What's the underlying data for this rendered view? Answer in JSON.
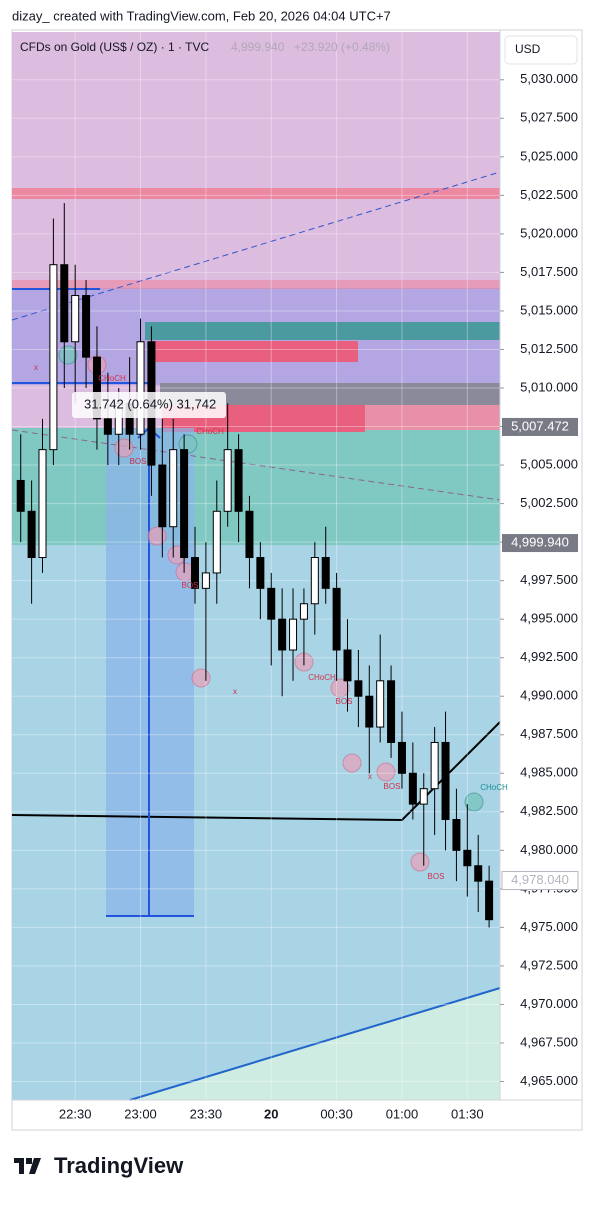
{
  "header": "dizay_ created with TradingView.com, Feb 20, 2026 04:04 UTC+7",
  "footer_logo": "TradingView",
  "chart_data": {
    "type": "candlestick",
    "symbol": "CFDs on Gold (US$ / OZ) · 1 · TVC",
    "last_text": "4,999.940",
    "change_text": "+23.920 (+0.48%)",
    "currency": "USD",
    "price_labels": [
      {
        "value": 5007.472,
        "label": "5,007.472"
      },
      {
        "value": 4999.94,
        "label": "4,999.940"
      },
      {
        "value": 4978.04,
        "label": "4,978.040"
      }
    ],
    "measure_label": "31.742 (0.64%) 31,742",
    "annotations": [
      "BOS",
      "CHoCH",
      "CHoCH",
      "BOS",
      "CHoCH",
      "BOS",
      "BOS",
      "BOS",
      "CHoCH",
      "x",
      "x",
      "x"
    ],
    "up_color": "#ffffff",
    "down_color": "#000000",
    "xlim": [
      "22:01",
      "01:45"
    ],
    "xticks": [
      {
        "value": "22:30",
        "label": "22:30"
      },
      {
        "value": "23:00",
        "label": "23:00"
      },
      {
        "value": "23:30",
        "label": "23:30"
      },
      {
        "value": "00:00",
        "label": "20"
      },
      {
        "value": "00:30",
        "label": "00:30"
      },
      {
        "value": "01:00",
        "label": "01:00"
      },
      {
        "value": "01:30",
        "label": "01:30"
      }
    ],
    "ylim": [
      4963.8,
      5033.1
    ],
    "yticks": [
      {
        "value": 4965,
        "label": "4,965.000"
      },
      {
        "value": 4967.5,
        "label": "4,967.500"
      },
      {
        "value": 4970,
        "label": "4,970.000"
      },
      {
        "value": 4972.5,
        "label": "4,972.500"
      },
      {
        "value": 4975,
        "label": "4,975.000"
      },
      {
        "value": 4977.5,
        "label": "4,977.500"
      },
      {
        "value": 4980,
        "label": "4,980.000"
      },
      {
        "value": 4982.5,
        "label": "4,982.500"
      },
      {
        "value": 4985,
        "label": "4,985.000"
      },
      {
        "value": 4987.5,
        "label": "4,987.500"
      },
      {
        "value": 4990,
        "label": "4,990.000"
      },
      {
        "value": 4992.5,
        "label": "4,992.500"
      },
      {
        "value": 4995,
        "label": "4,995.000"
      },
      {
        "value": 4997.5,
        "label": "4,997.500"
      },
      {
        "value": 5000,
        "label": "5,000.000"
      },
      {
        "value": 5002.5,
        "label": "5,002.500"
      },
      {
        "value": 5005,
        "label": "5,005.000"
      },
      {
        "value": 5007.5,
        "label": "5,007.500"
      },
      {
        "value": 5010,
        "label": "5,010.000"
      },
      {
        "value": 5012.5,
        "label": "5,012.500"
      },
      {
        "value": 5015,
        "label": "5,015.000"
      },
      {
        "value": 5017.5,
        "label": "5,017.500"
      },
      {
        "value": 5020,
        "label": "5,020.000"
      },
      {
        "value": 5022.5,
        "label": "5,022.500"
      },
      {
        "value": 5025,
        "label": "5,025.000"
      },
      {
        "value": 5027.5,
        "label": "5,027.500"
      },
      {
        "value": 5030,
        "label": "5,030.000"
      }
    ],
    "x": [
      "22:05",
      "22:10",
      "22:15",
      "22:20",
      "22:25",
      "22:30",
      "22:35",
      "22:40",
      "22:45",
      "22:50",
      "22:55",
      "23:00",
      "23:05",
      "23:10",
      "23:15",
      "23:20",
      "23:25",
      "23:30",
      "23:35",
      "23:40",
      "23:45",
      "23:50",
      "23:55",
      "00:00",
      "00:05",
      "00:10",
      "00:15",
      "00:20",
      "00:25",
      "00:30",
      "00:35",
      "00:40",
      "00:45",
      "00:50",
      "00:55",
      "01:00",
      "01:05",
      "01:10",
      "01:15",
      "01:20",
      "01:25",
      "01:30",
      "01:35",
      "01:40"
    ],
    "open": [
      5004,
      5002,
      4999,
      5006,
      5018,
      5013,
      5016,
      5012,
      5008,
      5007,
      5009,
      5007,
      5013,
      5005,
      5001,
      5006,
      4999,
      4997,
      4998,
      5002,
      5006,
      5002,
      4999,
      4997,
      4995,
      4993,
      4995,
      4996,
      4999,
      4997,
      4993,
      4991,
      4990,
      4988,
      4991,
      4987,
      4985,
      4983,
      4984,
      4987,
      4982,
      4980,
      4979,
      4978
    ],
    "high": [
      5007,
      5004,
      5008,
      5021,
      5022,
      5018,
      5017,
      5014,
      5011,
      5010,
      5012,
      5014.5,
      5014,
      5008,
      5008,
      5007,
      5001,
      5000,
      5004,
      5009,
      5007,
      5003,
      5000,
      4998,
      4997,
      4997,
      4997,
      5000,
      5001,
      4998,
      4995,
      4993,
      4992,
      4994,
      4992,
      4989,
      4987,
      4985,
      4988,
      4989,
      4984,
      4983,
      4981,
      4979
    ],
    "low": [
      5000,
      4996,
      4998,
      5005,
      5010,
      5009,
      5010,
      5006,
      5005,
      5005,
      5006,
      5006,
      5003,
      4999,
      4999,
      4998,
      4996,
      4991,
      4996,
      5001,
      5000,
      4997,
      4995,
      4992,
      4990,
      4991,
      4992,
      4994,
      4996,
      4991,
      4989,
      4988,
      4985,
      4987,
      4986,
      4984,
      4982,
      4979,
      4981,
      4980,
      4978,
      4977,
      4976,
      4975
    ],
    "close": [
      5002,
      4999,
      5006,
      5018,
      5013,
      5016,
      5012,
      5008,
      5007,
      5009,
      5007,
      5013,
      5005,
      5001,
      5006,
      4999,
      4997,
      4998,
      5002,
      5006,
      5002,
      4999,
      4997,
      4995,
      4993,
      4995,
      4996,
      4999,
      4997,
      4993,
      4991,
      4990,
      4988,
      4991,
      4987,
      4985,
      4983,
      4984,
      4987,
      4982,
      4980,
      4979,
      4978,
      4975.5
    ]
  }
}
